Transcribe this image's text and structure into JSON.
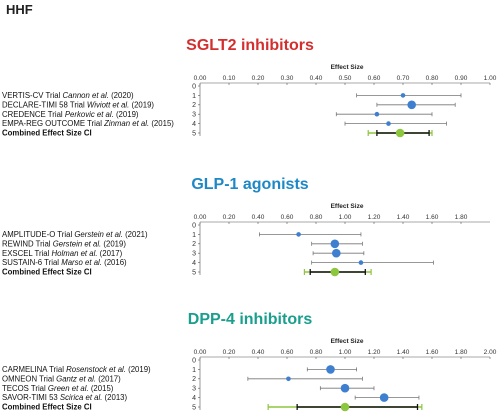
{
  "page_title": "HHF",
  "chart_data": [
    {
      "type": "forest",
      "title": "SGLT2 inhibitors",
      "title_color": "#d32f2f",
      "axis_label": "Effect Size",
      "xlim": [
        0,
        1
      ],
      "ticks": [
        "0.00",
        "0.10",
        "0.20",
        "0.30",
        "0.40",
        "0.50",
        "0.60",
        "0.70",
        "0.80",
        "0.90",
        "1.00"
      ],
      "row_numbers": [
        "0",
        "1",
        "2",
        "3",
        "4",
        "5"
      ],
      "studies": [
        {
          "trial": "VERTIS-CV Trial ",
          "author": "Cannon et al.",
          "year": " (2020)",
          "estimate": 0.7,
          "lower": 0.54,
          "upper": 0.9,
          "weight": "small"
        },
        {
          "trial": "DECLARE-TIMI 58 Trial ",
          "author": "Wiviott et al.",
          "year": " (2019)",
          "estimate": 0.73,
          "lower": 0.61,
          "upper": 0.88,
          "weight": "large"
        },
        {
          "trial": "CREDENCE Trial ",
          "author": "Perkovic et al.",
          "year": " (2019)",
          "estimate": 0.61,
          "lower": 0.47,
          "upper": 0.8,
          "weight": "small"
        },
        {
          "trial": "EMPA-REG OUTCOME Trial ",
          "author": "Zinman et al.",
          "year": " (2015)",
          "estimate": 0.65,
          "lower": 0.5,
          "upper": 0.85,
          "weight": "small"
        }
      ],
      "combined": {
        "label": "Combined Effect Size CI",
        "estimate": 0.69,
        "lower": 0.61,
        "upper": 0.79,
        "pi_lower": 0.58,
        "pi_upper": 0.8
      }
    },
    {
      "type": "forest",
      "title": "GLP-1 agonists",
      "title_color": "#1e88c7",
      "axis_label": "Effect Size",
      "xlim": [
        0,
        2
      ],
      "ticks": [
        "0.00",
        "0.20",
        "0.40",
        "0.60",
        "0.80",
        "1.00",
        "1.20",
        "1.40",
        "1.60",
        "1.80"
      ],
      "row_numbers": [
        "0",
        "1",
        "2",
        "3",
        "4",
        "5"
      ],
      "studies": [
        {
          "trial": "AMPLITUDE-O Trial ",
          "author": "Gerstein et al.",
          "year": " (2021)",
          "estimate": 0.68,
          "lower": 0.41,
          "upper": 1.11,
          "weight": "small"
        },
        {
          "trial": "REWIND Trial ",
          "author": "Gerstein et al.",
          "year": " (2019)",
          "estimate": 0.93,
          "lower": 0.77,
          "upper": 1.12,
          "weight": "large"
        },
        {
          "trial": "EXSCEL Trial ",
          "author": "Holman et al.",
          "year": " (2017)",
          "estimate": 0.94,
          "lower": 0.78,
          "upper": 1.13,
          "weight": "large"
        },
        {
          "trial": "SUSTAIN-6 Trial ",
          "author": "Marso et al.",
          "year": " (2016)",
          "estimate": 1.11,
          "lower": 0.77,
          "upper": 1.61,
          "weight": "small"
        }
      ],
      "combined": {
        "label": "Combined Effect Size CI",
        "estimate": 0.93,
        "lower": 0.76,
        "upper": 1.14,
        "pi_lower": 0.72,
        "pi_upper": 1.18
      }
    },
    {
      "type": "forest",
      "title": "DPP-4 inhibitors",
      "title_color": "#1a9e8e",
      "axis_label": "Effect Size",
      "xlim": [
        0,
        2
      ],
      "ticks": [
        "0.00",
        "0.20",
        "0.40",
        "0.60",
        "0.80",
        "1.00",
        "1.20",
        "1.40",
        "1.60",
        "1.80",
        "2.00"
      ],
      "row_numbers": [
        "0",
        "1",
        "2",
        "3",
        "4",
        "5"
      ],
      "studies": [
        {
          "trial": "CARMELINA Trial ",
          "author": "Rosenstock et al.",
          "year": " (2019)",
          "estimate": 0.9,
          "lower": 0.74,
          "upper": 1.08,
          "weight": "large"
        },
        {
          "trial": "OMNEON Trial ",
          "author": "Gantz et al.",
          "year": " (2017)",
          "estimate": 0.61,
          "lower": 0.33,
          "upper": 1.12,
          "weight": "small"
        },
        {
          "trial": "TECOS Trial ",
          "author": "Green et al.",
          "year": " (2015)",
          "estimate": 1.0,
          "lower": 0.83,
          "upper": 1.2,
          "weight": "large"
        },
        {
          "trial": "SAVOR-TIMI 53 ",
          "author": "Scirica et al.",
          "year": " (2013)",
          "estimate": 1.27,
          "lower": 1.07,
          "upper": 1.51,
          "weight": "large"
        }
      ],
      "combined": {
        "label": "Combined Effect Size CI",
        "estimate": 1.0,
        "lower": 0.67,
        "upper": 1.5,
        "pi_lower": 0.47,
        "pi_upper": 1.53
      }
    }
  ],
  "colors": {
    "point": "#3f7fd0",
    "combined_point": "#8dc63f",
    "prediction_interval": "#8dc63f",
    "ci_line": "#777777",
    "combined_ci": "#111111",
    "axis": "#555555"
  }
}
